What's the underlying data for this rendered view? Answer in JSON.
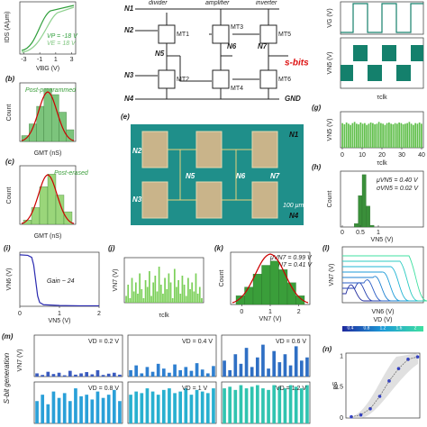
{
  "a": {
    "ylabel": "IDS (A/μm)",
    "xlabel": "VBG (V)",
    "xticks": [
      -3,
      -1,
      1,
      3
    ],
    "legend": [
      "VP = -18 V",
      "VE = 18 V"
    ]
  },
  "b": {
    "label": "(b)",
    "ylabel": "Count",
    "xlabel": "GMT (nS)",
    "note": "Post-programmed",
    "counts": [
      1,
      3,
      6,
      9,
      8,
      5,
      2
    ],
    "ylim": [
      0,
      10
    ],
    "color": "#7cc47c"
  },
  "c": {
    "label": "(c)",
    "ylabel": "Count",
    "xlabel": "GMT (nS)",
    "note": "Post-erased",
    "counts": [
      1,
      4,
      9,
      12,
      7,
      3
    ],
    "ylim": [
      0,
      14
    ],
    "color": "#9ad67a"
  },
  "circuit": {
    "nodes": [
      "N1",
      "N2",
      "N3",
      "N4",
      "N5",
      "N6",
      "N7"
    ],
    "gnd": "GND",
    "stages": [
      "divider",
      "amplifier",
      "inverter"
    ],
    "output": "s-bits",
    "transistors": [
      "MT1",
      "MT2",
      "MT3",
      "MT4",
      "MT5",
      "MT6"
    ]
  },
  "chip": {
    "label": "(e)",
    "nodes": [
      "N1",
      "N2",
      "N3",
      "N4",
      "N5",
      "N6",
      "N7"
    ],
    "scale": "100 μm"
  },
  "clock": {
    "ylabel_g": "VG (V)",
    "ylabel_n5": "VN5 (V)",
    "xlabel": "τclk"
  },
  "g": {
    "label": "(g)",
    "ylabel": "VN5 (V)",
    "xlabel": "τclk",
    "xticks": [
      0,
      10,
      20,
      30,
      40
    ],
    "ylim": [
      0,
      0.6
    ],
    "color": "#5fbf4a",
    "values": [
      0.41,
      0.39,
      0.42,
      0.4,
      0.38,
      0.41,
      0.43,
      0.4,
      0.39,
      0.42,
      0.4,
      0.41,
      0.38,
      0.4,
      0.42,
      0.41,
      0.39,
      0.4,
      0.43,
      0.41,
      0.4,
      0.38,
      0.41,
      0.42,
      0.4,
      0.39,
      0.41,
      0.4,
      0.42,
      0.41,
      0.39,
      0.4,
      0.41,
      0.43,
      0.4,
      0.38,
      0.41,
      0.4,
      0.42,
      0.4
    ]
  },
  "h": {
    "label": "(h)",
    "ylabel": "Count",
    "xlabel": "VN5 (V)",
    "mu": "μVN5 = 0.40 V",
    "sigma": "σVN5 = 0.02 V",
    "xticks": [
      0,
      0.5,
      1
    ],
    "counts": [
      0,
      0,
      0,
      2,
      18,
      30,
      12,
      1,
      0,
      0,
      0,
      0,
      0,
      0,
      0,
      0,
      0,
      0,
      0,
      0
    ],
    "ylim": [
      0,
      32
    ],
    "color": "#3a8f3a"
  },
  "i": {
    "label": "(i)",
    "ylabel": "VN6 (V)",
    "xlabel": "VN5 (V)",
    "gain": "Gain ~ 24",
    "xticks": [
      0,
      1,
      2
    ],
    "x": [
      0,
      0.2,
      0.3,
      0.35,
      0.4,
      0.45,
      0.5,
      0.6,
      1,
      1.5,
      2
    ],
    "y": [
      2,
      1.98,
      1.9,
      1.6,
      1,
      0.4,
      0.15,
      0.06,
      0.03,
      0.02,
      0.02
    ],
    "xlim": [
      0,
      2
    ],
    "ylim": [
      0,
      2.1
    ],
    "color": "#2a2ab0"
  },
  "j": {
    "label": "(j)",
    "ylabel": "VN7 (V)",
    "xlabel": "τclk",
    "ylim": [
      0,
      2
    ],
    "color": "#7cd05a",
    "values": [
      0.3,
      0.8,
      0.2,
      1.1,
      0.5,
      0.9,
      0.4,
      1.3,
      0.6,
      0.2,
      1,
      0.7,
      1.4,
      0.3,
      0.9,
      1.2,
      0.5,
      1.6,
      0.8,
      0.4,
      1.1,
      0.6,
      1.3,
      0.9,
      0.2,
      1.5,
      0.7,
      1,
      0.4,
      1.2,
      0.8,
      0.3,
      1.1,
      0.6,
      0.9,
      0.5,
      1.3,
      0.4,
      0.7,
      0.2
    ]
  },
  "k": {
    "label": "(k)",
    "ylabel": "Count",
    "xlabel": "VN7 (V)",
    "mu": "μVN7 = 0.99 V",
    "sigma": "σVN7 = 0.41 V",
    "xticks": [
      0,
      1,
      2
    ],
    "counts": [
      2,
      4,
      7,
      9,
      10,
      8,
      5,
      2
    ],
    "ylim": [
      0,
      12
    ],
    "color": "#3a9e3a"
  },
  "l": {
    "label": "(l)",
    "ylabel": "VN7 (V)",
    "xlabel": "VN6 (V)",
    "colorbar_label": "VD (V)",
    "colorbar_ticks": [
      0.4,
      0.8,
      1.2,
      1.6,
      2.0
    ]
  },
  "m": {
    "label": "(m)",
    "title": "S-bit generation",
    "ylabel": "VN7 (V)",
    "ylim": [
      0,
      1.3
    ],
    "panels": [
      {
        "label": "VD = 0.2 V",
        "color": "#3a5bbf",
        "values": [
          0.1,
          0.05,
          0.15,
          0.08,
          0.12,
          0.04,
          0.18,
          0.06,
          0.1,
          0.14,
          0.07,
          0.2,
          0.05,
          0.09,
          0.12,
          0.06
        ]
      },
      {
        "label": "VD = 0.4 V",
        "color": "#2e7fd0",
        "values": [
          0.2,
          0.35,
          0.1,
          0.3,
          0.15,
          0.4,
          0.25,
          0.12,
          0.38,
          0.2,
          0.3,
          0.18,
          0.42,
          0.22,
          0.1,
          0.33
        ]
      },
      {
        "label": "VD = 0.6 V",
        "color": "#2f6fc4",
        "values": [
          0.5,
          0.2,
          0.7,
          0.4,
          0.9,
          0.3,
          0.6,
          1,
          0.25,
          0.8,
          0.45,
          0.7,
          0.35,
          0.95,
          0.5,
          0.6
        ]
      },
      {
        "label": "VD = 0.8 V",
        "color": "#2aa0d8",
        "values": [
          0.7,
          0.9,
          0.6,
          1,
          0.8,
          0.95,
          0.7,
          1.1,
          0.85,
          0.9,
          0.75,
          1,
          0.8,
          0.9,
          1.05,
          0.7
        ]
      },
      {
        "label": "VD = 1 V",
        "color": "#28b0d0",
        "values": [
          0.9,
          1,
          0.95,
          1.1,
          1,
          0.9,
          1.05,
          1.1,
          0.95,
          1,
          1.1,
          0.9,
          1.05,
          1,
          0.95,
          1.1
        ]
      },
      {
        "label": "VD = 1.2 V",
        "color": "#30c4b0",
        "values": [
          1.1,
          1.15,
          1.05,
          1.2,
          1.1,
          1.15,
          1.2,
          1.1,
          1.05,
          1.2,
          1.15,
          1.1,
          1.2,
          1.15,
          1.1,
          1.2
        ]
      }
    ]
  },
  "n": {
    "label": "(n)",
    "ylabel": "pS",
    "yticks": [
      0,
      0.5,
      1
    ],
    "ylim": [
      0,
      1.05
    ],
    "values": [
      0.02,
      0.05,
      0.15,
      0.35,
      0.6,
      0.8,
      0.95,
      0.99
    ]
  }
}
